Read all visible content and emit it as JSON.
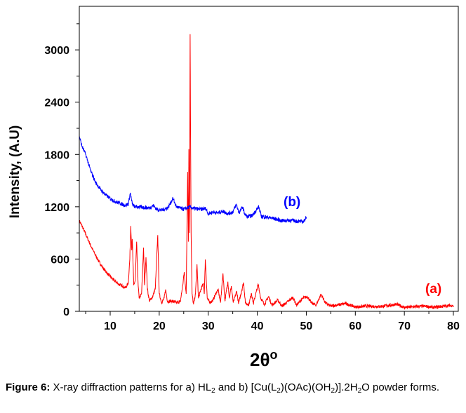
{
  "chart_data": {
    "type": "line",
    "xlabel": "2θ",
    "xlabel_superscript": "o",
    "ylabel": "Intensity, (A.U)",
    "xlim": [
      3.7,
      81
    ],
    "ylim": [
      0,
      3500
    ],
    "xticks": [
      10,
      20,
      30,
      40,
      50,
      60,
      70,
      80
    ],
    "yticks": [
      0,
      600,
      1200,
      1800,
      2400,
      3000
    ],
    "grid": false,
    "series": [
      {
        "name": "(a)",
        "color": "#ff0000",
        "noise": 18,
        "points": [
          [
            3.7,
            1040
          ],
          [
            4.5,
            950
          ],
          [
            5.5,
            820
          ],
          [
            6.5,
            700
          ],
          [
            7.5,
            590
          ],
          [
            8.5,
            500
          ],
          [
            9.5,
            430
          ],
          [
            10.5,
            370
          ],
          [
            11.5,
            320
          ],
          [
            12.5,
            290
          ],
          [
            13.2,
            270
          ],
          [
            13.7,
            330
          ],
          [
            14.0,
            600
          ],
          [
            14.2,
            980
          ],
          [
            14.4,
            700
          ],
          [
            14.5,
            830
          ],
          [
            14.8,
            300
          ],
          [
            15.1,
            350
          ],
          [
            15.4,
            800
          ],
          [
            15.6,
            400
          ],
          [
            15.9,
            150
          ],
          [
            16.4,
            200
          ],
          [
            16.8,
            730
          ],
          [
            17.0,
            300
          ],
          [
            17.3,
            620
          ],
          [
            17.6,
            250
          ],
          [
            18.0,
            120
          ],
          [
            18.6,
            160
          ],
          [
            19.2,
            260
          ],
          [
            19.7,
            875
          ],
          [
            20.0,
            200
          ],
          [
            20.5,
            100
          ],
          [
            21.0,
            150
          ],
          [
            21.3,
            250
          ],
          [
            21.7,
            110
          ],
          [
            22.5,
            120
          ],
          [
            23.5,
            100
          ],
          [
            24.3,
            110
          ],
          [
            24.8,
            300
          ],
          [
            25.1,
            450
          ],
          [
            25.5,
            200
          ],
          [
            25.8,
            1600
          ],
          [
            25.95,
            800
          ],
          [
            26.05,
            1860
          ],
          [
            26.2,
            900
          ],
          [
            26.3,
            3180
          ],
          [
            26.5,
            900
          ],
          [
            26.7,
            200
          ],
          [
            27.0,
            80
          ],
          [
            27.4,
            200
          ],
          [
            27.7,
            540
          ],
          [
            28.0,
            150
          ],
          [
            28.5,
            250
          ],
          [
            29.0,
            320
          ],
          [
            29.2,
            200
          ],
          [
            29.4,
            595
          ],
          [
            29.8,
            150
          ],
          [
            30.3,
            100
          ],
          [
            31.0,
            130
          ],
          [
            31.5,
            200
          ],
          [
            32.0,
            250
          ],
          [
            32.5,
            100
          ],
          [
            33.0,
            435
          ],
          [
            33.4,
            120
          ],
          [
            34.0,
            340
          ],
          [
            34.3,
            150
          ],
          [
            34.7,
            290
          ],
          [
            35.1,
            100
          ],
          [
            35.8,
            230
          ],
          [
            36.2,
            90
          ],
          [
            37.2,
            330
          ],
          [
            37.6,
            90
          ],
          [
            38.3,
            80
          ],
          [
            38.8,
            210
          ],
          [
            39.2,
            90
          ],
          [
            40.2,
            310
          ],
          [
            40.7,
            150
          ],
          [
            41.5,
            80
          ],
          [
            42.3,
            170
          ],
          [
            43.0,
            70
          ],
          [
            44.2,
            130
          ],
          [
            45,
            60
          ],
          [
            46,
            100
          ],
          [
            47.3,
            160
          ],
          [
            48,
            70
          ],
          [
            49.3,
            150
          ],
          [
            50.2,
            170
          ],
          [
            51,
            100
          ],
          [
            52,
            70
          ],
          [
            53,
            195
          ],
          [
            54,
            90
          ],
          [
            55,
            60
          ],
          [
            56,
            70
          ],
          [
            58,
            90
          ],
          [
            60,
            50
          ],
          [
            62,
            60
          ],
          [
            65,
            55
          ],
          [
            68.5,
            80
          ],
          [
            70,
            45
          ],
          [
            74,
            60
          ],
          [
            76,
            45
          ],
          [
            79.8,
            70
          ],
          [
            80,
            50
          ]
        ]
      },
      {
        "name": "(b)",
        "color": "#0000ff",
        "noise": 22,
        "points": [
          [
            3.7,
            2015
          ],
          [
            4.2,
            1900
          ],
          [
            5,
            1800
          ],
          [
            6,
            1615
          ],
          [
            7,
            1480
          ],
          [
            8,
            1400
          ],
          [
            9,
            1340
          ],
          [
            10,
            1295
          ],
          [
            11,
            1260
          ],
          [
            12,
            1240
          ],
          [
            13,
            1215
          ],
          [
            13.7,
            1230
          ],
          [
            14.1,
            1360
          ],
          [
            14.5,
            1230
          ],
          [
            15,
            1200
          ],
          [
            16.5,
            1195
          ],
          [
            18,
            1185
          ],
          [
            18.8,
            1215
          ],
          [
            19.5,
            1170
          ],
          [
            20.5,
            1160
          ],
          [
            21.8,
            1190
          ],
          [
            22.8,
            1295
          ],
          [
            23.5,
            1200
          ],
          [
            25,
            1170
          ],
          [
            26.3,
            1200
          ],
          [
            27,
            1180
          ],
          [
            28.5,
            1170
          ],
          [
            29.5,
            1180
          ],
          [
            30,
            1120
          ],
          [
            31,
            1140
          ],
          [
            32,
            1130
          ],
          [
            33,
            1150
          ],
          [
            34,
            1120
          ],
          [
            35,
            1140
          ],
          [
            35.7,
            1225
          ],
          [
            36.3,
            1130
          ],
          [
            37,
            1200
          ],
          [
            37.5,
            1110
          ],
          [
            38,
            1085
          ],
          [
            39,
            1100
          ],
          [
            40.3,
            1200
          ],
          [
            40.8,
            1090
          ],
          [
            42,
            1080
          ],
          [
            43,
            1070
          ],
          [
            45,
            1040
          ],
          [
            47,
            1045
          ],
          [
            48.5,
            1030
          ],
          [
            49.5,
            1030
          ],
          [
            50,
            1085
          ]
        ]
      }
    ]
  },
  "caption": {
    "label": "Figure 6:",
    "t1": " X-ray diffraction patterns for a) HL",
    "s1": "2",
    "t2": " and b) [Cu(L",
    "s2": "2",
    "t3": ")(OAc)(OH",
    "s3": "2",
    "t4": ")].2H",
    "s4": "2",
    "t5": "O powder forms."
  }
}
